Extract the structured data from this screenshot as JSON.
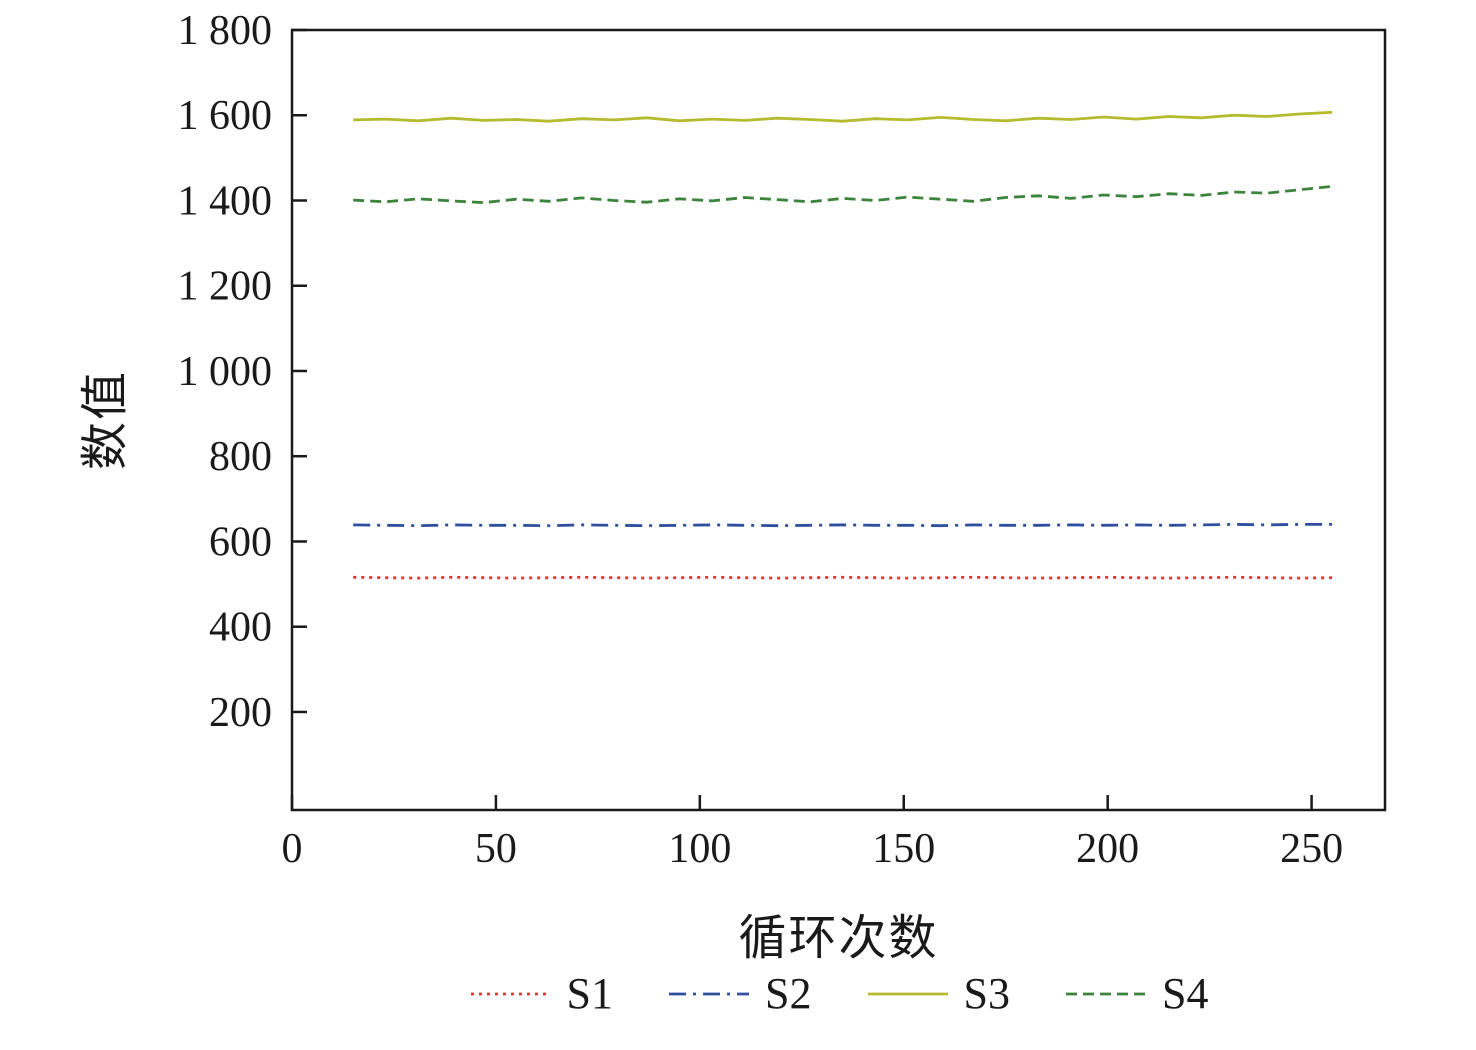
{
  "chart_data": {
    "type": "line",
    "title": "",
    "xlabel": "循环次数",
    "ylabel": "数值",
    "xlim": [
      0,
      268
    ],
    "ylim": [
      -30,
      1800
    ],
    "grid": false,
    "legend_position": "bottom",
    "axis_color": "#1a1a1a",
    "x_ticks": [
      {
        "v": 0,
        "label": "0"
      },
      {
        "v": 50,
        "label": "50"
      },
      {
        "v": 100,
        "label": "100"
      },
      {
        "v": 150,
        "label": "150"
      },
      {
        "v": 200,
        "label": "200"
      },
      {
        "v": 250,
        "label": "250"
      }
    ],
    "y_ticks": [
      {
        "v": 200,
        "label": "200"
      },
      {
        "v": 400,
        "label": "400"
      },
      {
        "v": 600,
        "label": "600"
      },
      {
        "v": 800,
        "label": "800"
      },
      {
        "v": 1000,
        "label": "1 000"
      },
      {
        "v": 1200,
        "label": "1 200"
      },
      {
        "v": 1400,
        "label": "1 400"
      },
      {
        "v": 1600,
        "label": "1 600"
      },
      {
        "v": 1800,
        "label": "1 800"
      }
    ],
    "x": [
      15,
      23,
      31,
      39,
      47,
      55,
      63,
      71,
      79,
      87,
      95,
      103,
      111,
      119,
      127,
      135,
      143,
      151,
      159,
      167,
      175,
      183,
      191,
      199,
      207,
      215,
      223,
      231,
      239,
      247,
      255
    ],
    "series": [
      {
        "name": "S1",
        "color": "#e0352f",
        "dash": "dotted",
        "values": [
          516,
          515,
          514,
          516,
          515,
          514,
          515,
          516,
          515,
          514,
          515,
          516,
          515,
          514,
          515,
          516,
          515,
          514,
          515,
          516,
          515,
          514,
          515,
          516,
          515,
          514,
          515,
          516,
          515,
          514,
          515
        ]
      },
      {
        "name": "S2",
        "color": "#2e4f9e",
        "dash": "dash-dot",
        "values": [
          639,
          638,
          637,
          639,
          638,
          638,
          637,
          639,
          638,
          637,
          638,
          639,
          638,
          637,
          638,
          639,
          638,
          638,
          637,
          639,
          638,
          638,
          639,
          638,
          639,
          638,
          639,
          640,
          639,
          640,
          640
        ]
      },
      {
        "name": "S3",
        "color": "#b4bb2e",
        "dash": "solid",
        "values": [
          1589,
          1591,
          1587,
          1593,
          1588,
          1590,
          1586,
          1592,
          1589,
          1594,
          1587,
          1591,
          1588,
          1593,
          1590,
          1586,
          1592,
          1589,
          1595,
          1590,
          1587,
          1593,
          1590,
          1596,
          1591,
          1597,
          1594,
          1600,
          1597,
          1603,
          1607
        ]
      },
      {
        "name": "S4",
        "color": "#3c843c",
        "dash": "dashed",
        "values": [
          1401,
          1397,
          1404,
          1399,
          1395,
          1403,
          1398,
          1406,
          1400,
          1396,
          1404,
          1399,
          1407,
          1402,
          1397,
          1405,
          1400,
          1408,
          1403,
          1398,
          1407,
          1411,
          1405,
          1413,
          1409,
          1416,
          1412,
          1420,
          1417,
          1425,
          1433
        ]
      }
    ]
  }
}
